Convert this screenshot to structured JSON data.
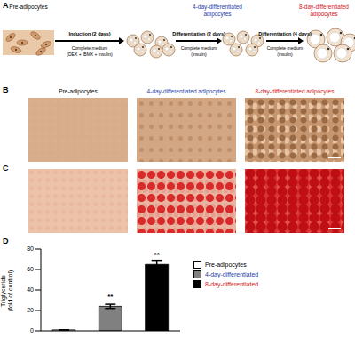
{
  "panel_labels": [
    "A",
    "B",
    "C",
    "D"
  ],
  "schematic": {
    "stages": [
      [
        "Pre-adipocytes"
      ],
      [
        "4-day-differentiated",
        "adipocytes"
      ],
      [
        "8-day-differentiated",
        "adipocytes"
      ]
    ],
    "steps": [
      {
        "title": "Induction (2 days)",
        "lines": [
          "Complete medium",
          "(DEX + IBMX + insulin)"
        ]
      },
      {
        "title": "Differentiation (2 days)",
        "lines": [
          "Complete medium",
          "(insulin)"
        ]
      },
      {
        "title": "Differentiation (4 days)",
        "lines": [
          "Complete medium",
          "(insulin)"
        ]
      }
    ]
  },
  "micrographs": {
    "columns": [
      "Pre-adipocytes",
      "4-day-differentiated adipocytes",
      "8-day-differentiated adipocytes"
    ]
  },
  "chart_data": {
    "type": "bar",
    "ylabel": [
      "Triglyceride",
      "(fold of control)"
    ],
    "categories": [
      "Pre-adipocytes",
      "4-day-differentiated",
      "8-day-differentiated"
    ],
    "values": [
      1,
      24,
      65
    ],
    "errors": [
      0.1,
      2,
      4
    ],
    "colors": [
      "#ffffff",
      "#808080",
      "#000000"
    ],
    "significance": [
      null,
      "**",
      "**"
    ],
    "ylim": [
      0,
      80
    ],
    "yticks": [
      0,
      20,
      40,
      60,
      80
    ],
    "legend": "right",
    "tick_labels": "y"
  }
}
